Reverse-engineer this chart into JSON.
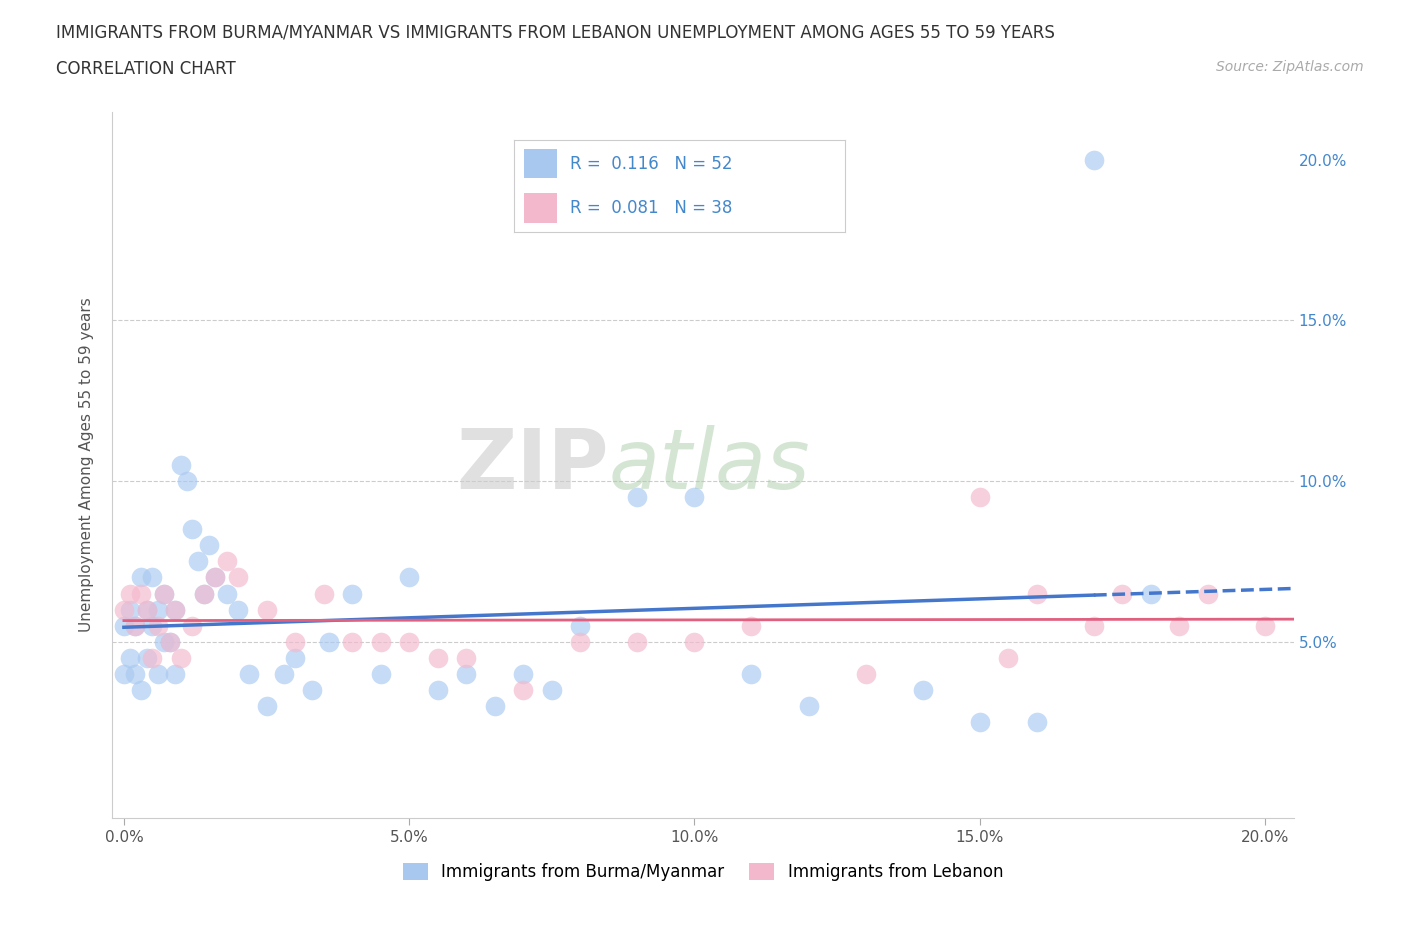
{
  "title_line1": "IMMIGRANTS FROM BURMA/MYANMAR VS IMMIGRANTS FROM LEBANON UNEMPLOYMENT AMONG AGES 55 TO 59 YEARS",
  "title_line2": "CORRELATION CHART",
  "source_text": "Source: ZipAtlas.com",
  "ylabel": "Unemployment Among Ages 55 to 59 years",
  "xlim": [
    -0.002,
    0.205
  ],
  "ylim": [
    -0.005,
    0.215
  ],
  "xticks": [
    0.0,
    0.05,
    0.1,
    0.15,
    0.2
  ],
  "yticks": [
    0.0,
    0.05,
    0.1,
    0.15,
    0.2
  ],
  "xticklabels": [
    "0.0%",
    "5.0%",
    "10.0%",
    "15.0%",
    "20.0%"
  ],
  "yticklabels_right": [
    "",
    "5.0%",
    "10.0%",
    "15.0%",
    "20.0%"
  ],
  "watermark_zip": "ZIP",
  "watermark_atlas": "atlas",
  "legend_entry1": {
    "label": "Immigrants from Burma/Myanmar",
    "color": "#a8c8f0",
    "R": "0.116",
    "N": "52"
  },
  "legend_entry2": {
    "label": "Immigrants from Lebanon",
    "color": "#f4b8cc",
    "R": "0.081",
    "N": "38"
  },
  "blue_scatter_color": "#a8c8f0",
  "pink_scatter_color": "#f4b8cc",
  "trend_blue": "#4477cc",
  "trend_pink": "#e06080",
  "grid_color": "#cccccc",
  "background_color": "#ffffff",
  "scatter_blue_x": [
    0.0,
    0.0,
    0.001,
    0.001,
    0.002,
    0.002,
    0.003,
    0.003,
    0.004,
    0.004,
    0.005,
    0.005,
    0.006,
    0.006,
    0.007,
    0.007,
    0.008,
    0.009,
    0.009,
    0.01,
    0.011,
    0.012,
    0.013,
    0.014,
    0.015,
    0.016,
    0.018,
    0.02,
    0.022,
    0.025,
    0.028,
    0.03,
    0.033,
    0.036,
    0.04,
    0.045,
    0.05,
    0.055,
    0.06,
    0.065,
    0.07,
    0.075,
    0.08,
    0.09,
    0.1,
    0.11,
    0.12,
    0.14,
    0.15,
    0.16,
    0.17,
    0.18
  ],
  "scatter_blue_y": [
    0.055,
    0.04,
    0.06,
    0.045,
    0.055,
    0.04,
    0.07,
    0.035,
    0.06,
    0.045,
    0.07,
    0.055,
    0.06,
    0.04,
    0.065,
    0.05,
    0.05,
    0.04,
    0.06,
    0.105,
    0.1,
    0.085,
    0.075,
    0.065,
    0.08,
    0.07,
    0.065,
    0.06,
    0.04,
    0.03,
    0.04,
    0.045,
    0.035,
    0.05,
    0.065,
    0.04,
    0.07,
    0.035,
    0.04,
    0.03,
    0.04,
    0.035,
    0.055,
    0.095,
    0.095,
    0.04,
    0.03,
    0.035,
    0.025,
    0.025,
    0.2,
    0.065
  ],
  "scatter_pink_x": [
    0.0,
    0.001,
    0.002,
    0.003,
    0.004,
    0.005,
    0.006,
    0.007,
    0.008,
    0.009,
    0.01,
    0.012,
    0.014,
    0.016,
    0.018,
    0.02,
    0.025,
    0.03,
    0.035,
    0.04,
    0.045,
    0.05,
    0.055,
    0.06,
    0.07,
    0.08,
    0.09,
    0.1,
    0.11,
    0.13,
    0.15,
    0.155,
    0.16,
    0.17,
    0.175,
    0.185,
    0.19,
    0.2
  ],
  "scatter_pink_y": [
    0.06,
    0.065,
    0.055,
    0.065,
    0.06,
    0.045,
    0.055,
    0.065,
    0.05,
    0.06,
    0.045,
    0.055,
    0.065,
    0.07,
    0.075,
    0.07,
    0.06,
    0.05,
    0.065,
    0.05,
    0.05,
    0.05,
    0.045,
    0.045,
    0.035,
    0.05,
    0.05,
    0.05,
    0.055,
    0.04,
    0.095,
    0.045,
    0.065,
    0.055,
    0.065,
    0.055,
    0.065,
    0.055
  ]
}
